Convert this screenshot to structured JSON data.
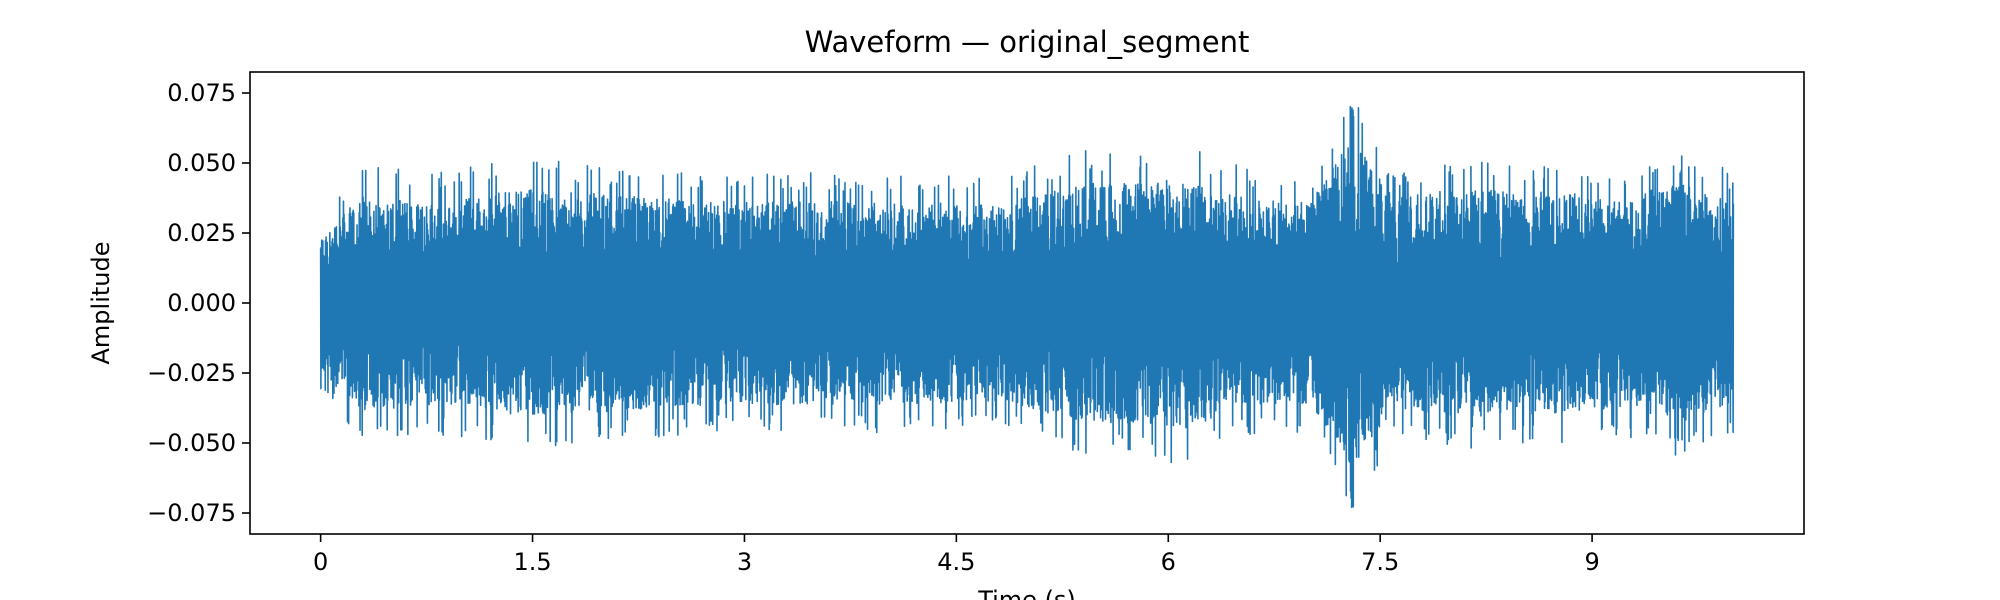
{
  "chart_data": {
    "type": "line",
    "title": "Waveform — original_segment",
    "xlabel": "Time (s)",
    "ylabel": "Amplitude",
    "xlim": [
      -0.5,
      10.5
    ],
    "ylim": [
      -0.0825,
      0.0825
    ],
    "x_ticks": [
      0,
      1.5,
      3,
      4.5,
      6,
      7.5,
      9
    ],
    "x_tick_labels": [
      "0",
      "1.5",
      "3",
      "4.5",
      "6",
      "7.5",
      "9"
    ],
    "y_ticks": [
      -0.075,
      -0.05,
      -0.025,
      0,
      0.025,
      0.05,
      0.075
    ],
    "y_tick_labels": [
      "−0.075",
      "−0.050",
      "−0.025",
      "0.000",
      "0.025",
      "0.050",
      "0.075"
    ],
    "grid": false,
    "series": [
      {
        "color": "#1f77b4",
        "duration": 10.0,
        "envelope": {
          "x": [
            0,
            0.3,
            0.8,
            1.5,
            2.4,
            3.0,
            3.4,
            4.2,
            4.8,
            5.4,
            5.85,
            6.1,
            6.6,
            7.0,
            7.3,
            7.6,
            8.0,
            8.7,
            9.2,
            9.6,
            10.0
          ],
          "y": [
            0.032,
            0.049,
            0.047,
            0.052,
            0.048,
            0.046,
            0.047,
            0.046,
            0.045,
            0.055,
            0.055,
            0.058,
            0.047,
            0.046,
            0.075,
            0.048,
            0.052,
            0.051,
            0.048,
            0.055,
            0.047
          ]
        }
      }
    ]
  }
}
